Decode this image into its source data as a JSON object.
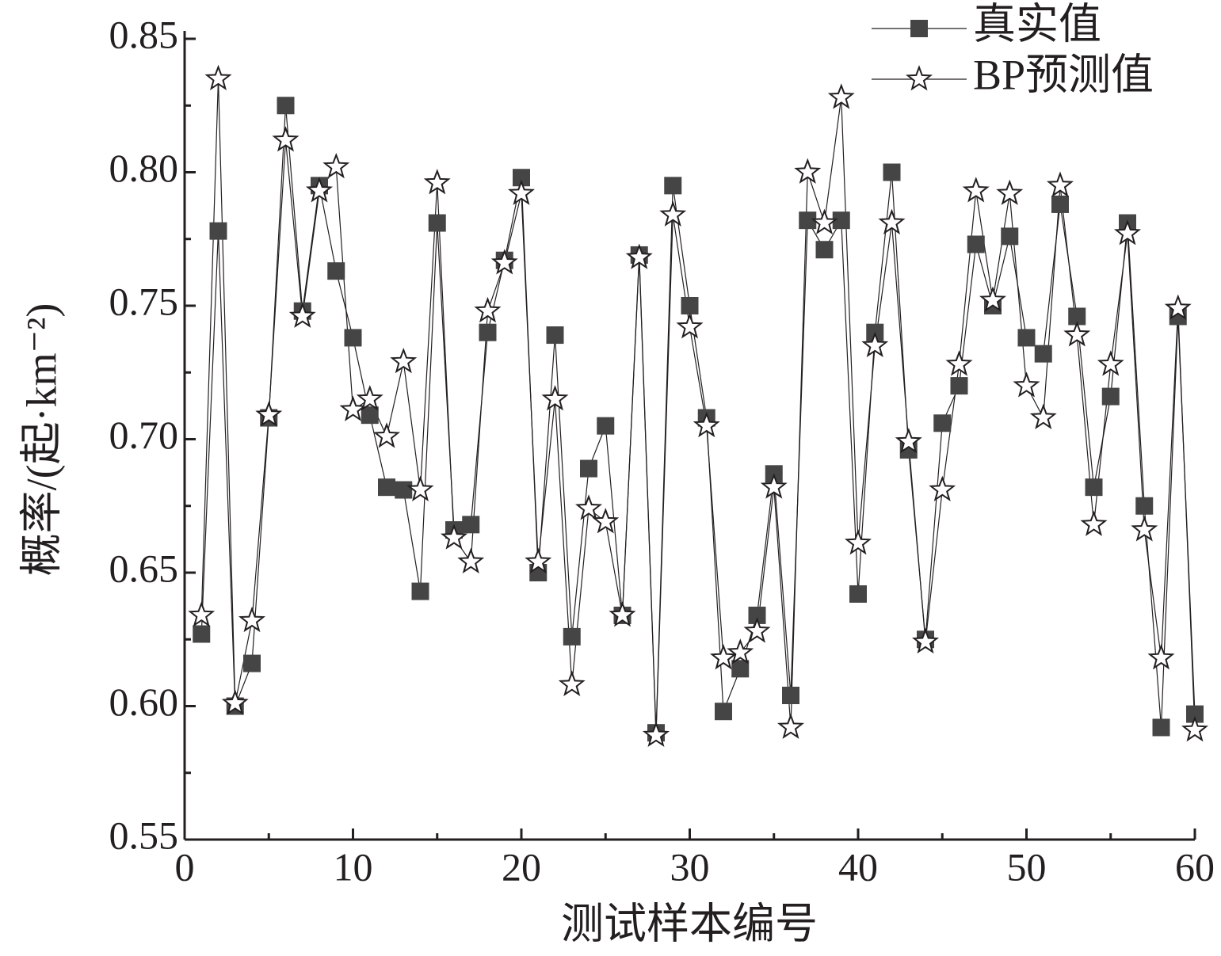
{
  "chart_data": {
    "type": "line",
    "xlabel": "测试样本编号",
    "ylabel": "概率/(起·km⁻²)",
    "x": [
      1,
      2,
      3,
      4,
      5,
      6,
      7,
      8,
      9,
      10,
      11,
      12,
      13,
      14,
      15,
      16,
      17,
      18,
      19,
      20,
      21,
      22,
      23,
      24,
      25,
      26,
      27,
      28,
      29,
      30,
      31,
      32,
      33,
      34,
      35,
      36,
      37,
      38,
      39,
      40,
      41,
      42,
      43,
      44,
      45,
      46,
      47,
      48,
      49,
      50,
      51,
      52,
      53,
      54,
      55,
      56,
      57,
      58,
      59,
      60
    ],
    "series": [
      {
        "name": "真实值",
        "color": "#454545",
        "marker": "square",
        "values": [
          0.627,
          0.778,
          0.6,
          0.616,
          0.708,
          0.825,
          0.748,
          0.795,
          0.763,
          0.738,
          0.709,
          0.682,
          0.681,
          0.643,
          0.781,
          0.666,
          0.668,
          0.74,
          0.767,
          0.798,
          0.65,
          0.739,
          0.626,
          0.689,
          0.705,
          0.634,
          0.769,
          0.59,
          0.795,
          0.75,
          0.708,
          0.598,
          0.614,
          0.634,
          0.687,
          0.604,
          0.782,
          0.771,
          0.782,
          0.642,
          0.74,
          0.8,
          0.696,
          0.625,
          0.706,
          0.72,
          0.773,
          0.75,
          0.776,
          0.738,
          0.732,
          0.788,
          0.746,
          0.682,
          0.716,
          0.781,
          0.675,
          0.592,
          0.746,
          0.597
        ]
      },
      {
        "name": "BP预测值",
        "color": "#ffffff",
        "marker": "star",
        "values": [
          0.634,
          0.835,
          0.601,
          0.632,
          0.709,
          0.812,
          0.746,
          0.793,
          0.802,
          0.711,
          0.715,
          0.701,
          0.729,
          0.681,
          0.796,
          0.663,
          0.654,
          0.748,
          0.766,
          0.792,
          0.654,
          0.715,
          0.608,
          0.674,
          0.669,
          0.634,
          0.768,
          0.589,
          0.784,
          0.742,
          0.705,
          0.618,
          0.62,
          0.628,
          0.682,
          0.592,
          0.8,
          0.781,
          0.828,
          0.661,
          0.735,
          0.781,
          0.699,
          0.624,
          0.681,
          0.728,
          0.793,
          0.752,
          0.792,
          0.72,
          0.708,
          0.795,
          0.739,
          0.668,
          0.728,
          0.777,
          0.666,
          0.618,
          0.749,
          0.591
        ]
      }
    ],
    "xlim": [
      0,
      60
    ],
    "xticks": [
      0,
      10,
      20,
      30,
      40,
      50,
      60
    ],
    "xminorticks": [
      5,
      15,
      25,
      35,
      45,
      55
    ],
    "ylim": [
      0.55,
      0.85
    ],
    "yticks": [
      0.55,
      {
        "value": 0.6,
        "label": "0.60"
      },
      0.65,
      {
        "value": 0.7,
        "label": "0.70"
      },
      0.75,
      {
        "value": 0.8,
        "label": "0.80"
      },
      0.85
    ],
    "yminorticks": [
      0.575,
      0.625,
      0.675,
      0.725,
      0.775,
      0.825
    ],
    "legend": "top-right",
    "grid": false
  }
}
